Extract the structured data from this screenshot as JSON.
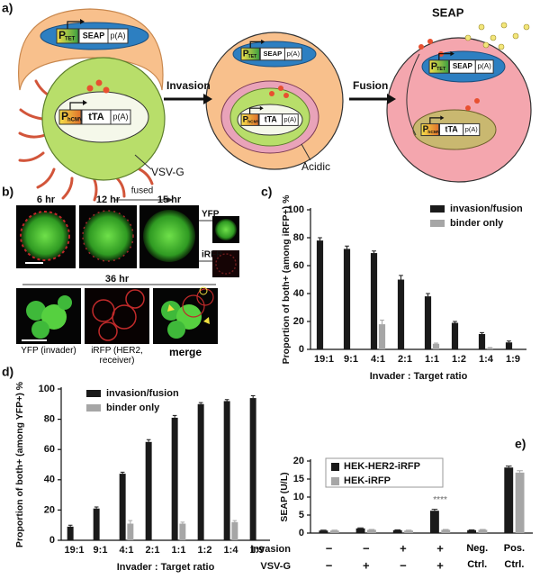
{
  "panel_a": {
    "label": "a)",
    "arrows": [
      "Invasion",
      "Fusion"
    ],
    "cells": [
      {
        "note": "VSV-G",
        "constructs": [
          {
            "promoter": "P",
            "promoter_sub": "TET",
            "gene": "SEAP",
            "polyA": "p(A)"
          },
          {
            "promoter": "P",
            "promoter_sub": "hCMV",
            "gene": "tTA",
            "polyA": "p(A)"
          }
        ]
      },
      {
        "note": "Acidic",
        "constructs": [
          {
            "promoter": "P",
            "promoter_sub": "TET",
            "gene": "SEAP",
            "polyA": "p(A)"
          },
          {
            "promoter": "P",
            "promoter_sub": "hCMV",
            "gene": "tTA",
            "polyA": "p(A)"
          }
        ]
      },
      {
        "note": "SEAP",
        "constructs": [
          {
            "promoter": "P",
            "promoter_sub": "TET",
            "gene": "SEAP",
            "polyA": "p(A)"
          },
          {
            "promoter": "P",
            "promoter_sub": "hCMV",
            "gene": "tTA",
            "polyA": "p(A)"
          }
        ]
      }
    ]
  },
  "panel_b": {
    "label": "b)",
    "timepoints": [
      "6 hr",
      "12 hr",
      "15 hr"
    ],
    "fused": "fused",
    "channels": [
      "YFP",
      "iRFP"
    ],
    "late_timepoint": "36 hr",
    "captions": [
      "YFP (invader)",
      "iRFP (HER2, receiver)",
      "merge"
    ]
  },
  "chart_data": [
    {
      "type": "bar",
      "panel": "c)",
      "y_label": "Proportion of both+ (among iRFP+) %",
      "x_label": "Invader : Target ratio",
      "categories": [
        "19:1",
        "9:1",
        "4:1",
        "2:1",
        "1:1",
        "1:2",
        "1:4",
        "1:9"
      ],
      "series": [
        {
          "name": "invasion/fusion",
          "color": "#1a1a1a",
          "values": [
            78,
            72,
            69,
            50,
            38,
            19,
            11,
            5
          ],
          "errors": [
            2,
            2,
            1.5,
            3,
            2,
            1,
            1,
            1
          ]
        },
        {
          "name": "binder only",
          "color": "#a6a6a6",
          "values": [
            null,
            null,
            18,
            null,
            4,
            null,
            1,
            null
          ],
          "errors": [
            null,
            null,
            3,
            null,
            0.5,
            null,
            0.3,
            null
          ]
        }
      ],
      "ylim": [
        0,
        100
      ],
      "yticks": [
        0,
        20,
        40,
        60,
        80,
        100
      ],
      "legend": "upper right"
    },
    {
      "type": "bar",
      "panel": "d)",
      "y_label": "Proportion of both+ (among YFP+) %",
      "x_label": "Invader : Target ratio",
      "categories": [
        "19:1",
        "9:1",
        "4:1",
        "2:1",
        "1:1",
        "1:2",
        "1:4",
        "1:9"
      ],
      "series": [
        {
          "name": "invasion/fusion",
          "color": "#1a1a1a",
          "values": [
            9,
            21,
            44,
            65,
            81,
            90,
            92,
            94
          ],
          "errors": [
            1,
            1,
            1,
            1.5,
            1.5,
            1,
            1,
            1.5
          ]
        },
        {
          "name": "binder only",
          "color": "#a6a6a6",
          "values": [
            null,
            null,
            11,
            null,
            11,
            null,
            12,
            null
          ],
          "errors": [
            null,
            null,
            2,
            null,
            1,
            null,
            1,
            null
          ]
        }
      ],
      "ylim": [
        0,
        100
      ],
      "yticks": [
        0,
        20,
        40,
        60,
        80,
        100
      ],
      "legend": "upper left"
    },
    {
      "type": "bar",
      "panel": "e)",
      "y_label": "SEAP (U/L)",
      "categories": [
        null,
        null,
        null,
        null,
        "Neg. Ctrl.",
        "Pos. Ctrl."
      ],
      "conditions": [
        {
          "name": "Invasion",
          "values": [
            "−",
            "−",
            "+",
            "+"
          ]
        },
        {
          "name": "VSV-G",
          "values": [
            "−",
            "+",
            "−",
            "+"
          ]
        }
      ],
      "series": [
        {
          "name": "HEK-HER2-iRFP",
          "color": "#1a1a1a",
          "values": [
            0.7,
            1.3,
            0.8,
            6.2,
            0.8,
            18.2
          ],
          "errors": [
            0.1,
            0.15,
            0.1,
            0.4,
            0.1,
            0.4
          ]
        },
        {
          "name": "HEK-iRFP",
          "color": "#a6a6a6",
          "values": [
            0.7,
            0.9,
            0.7,
            0.9,
            0.9,
            16.8
          ],
          "errors": [
            0.1,
            0.1,
            0.1,
            0.1,
            0.1,
            0.5
          ]
        }
      ],
      "annotation": {
        "text": "****",
        "category": 3
      },
      "ylim": [
        0,
        20
      ],
      "yticks": [
        0,
        5,
        10,
        15,
        20
      ],
      "legend": "upper left"
    }
  ]
}
